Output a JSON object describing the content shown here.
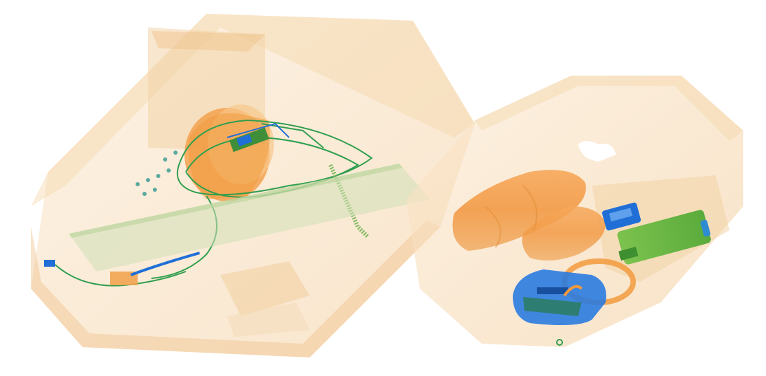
{
  "scene": {
    "kind": "x-ray baggage scan",
    "background": "#ffffff",
    "colors": {
      "organic": "#f2b15c",
      "organic_light": "#f7dcb4",
      "mixed": "#62b64a",
      "metal": "#1f6fd6",
      "wire": "#2f9e4f"
    },
    "objects": [
      "left-suitcase",
      "right-suitcase",
      "cylinder-container",
      "cable-bundle",
      "flat-panel",
      "connector-strip",
      "dual-rolls",
      "handle-ring",
      "blue-cartridge",
      "green-battery",
      "blue-device-box"
    ]
  }
}
